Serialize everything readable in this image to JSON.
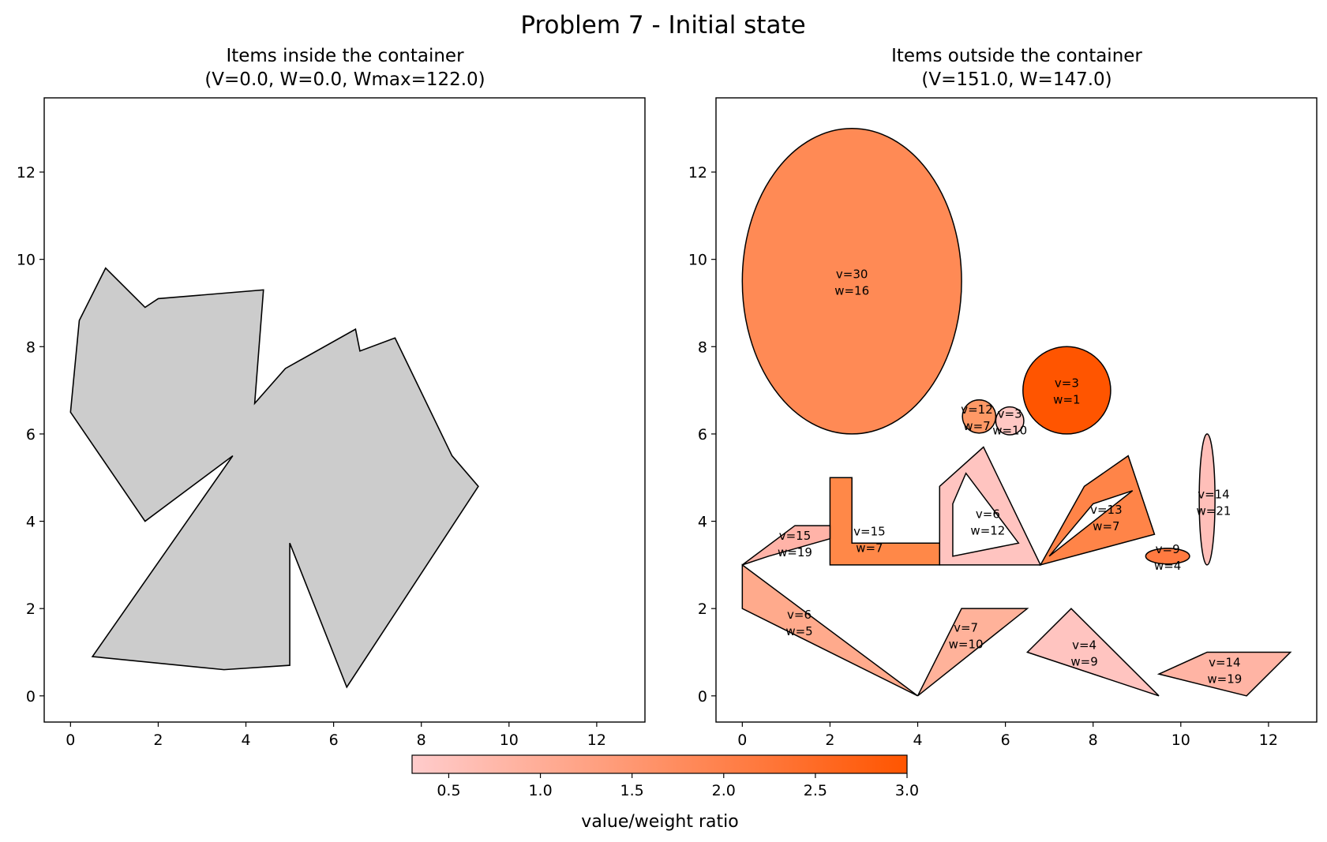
{
  "title": "Problem 7 - Initial state",
  "chart_data": [
    {
      "type": "polygon",
      "title_line1": "Items inside the container",
      "title_line2": "(V=0.0, W=0.0, Wmax=122.0)",
      "xlim": [
        -0.6,
        13.1
      ],
      "ylim": [
        -0.6,
        13.7
      ],
      "xticks": [
        0,
        2,
        4,
        6,
        8,
        10,
        12
      ],
      "yticks": [
        0,
        2,
        4,
        6,
        8,
        10,
        12
      ],
      "container": {
        "color": "#cccccc",
        "points": [
          [
            0.8,
            9.8
          ],
          [
            1.7,
            8.9
          ],
          [
            2.0,
            9.1
          ],
          [
            4.4,
            9.3
          ],
          [
            4.2,
            6.7
          ],
          [
            4.9,
            7.5
          ],
          [
            6.5,
            8.4
          ],
          [
            6.6,
            7.9
          ],
          [
            7.4,
            8.2
          ],
          [
            8.7,
            5.5
          ],
          [
            9.3,
            4.8
          ],
          [
            6.3,
            0.2
          ],
          [
            5.0,
            3.5
          ],
          [
            5.0,
            0.7
          ],
          [
            3.5,
            0.6
          ],
          [
            0.5,
            0.9
          ],
          [
            3.7,
            5.5
          ],
          [
            1.7,
            4.0
          ],
          [
            0.0,
            6.5
          ],
          [
            0.2,
            8.6
          ]
        ]
      }
    },
    {
      "type": "polygon",
      "title_line1": "Items outside the container",
      "title_line2": "(V=151.0, W=147.0)",
      "xlim": [
        -0.6,
        13.1
      ],
      "ylim": [
        -0.6,
        13.7
      ],
      "xticks": [
        0,
        2,
        4,
        6,
        8,
        10,
        12
      ],
      "yticks": [
        0,
        2,
        4,
        6,
        8,
        10,
        12
      ],
      "items": [
        {
          "shape": "ellipse",
          "cx": 2.5,
          "cy": 9.5,
          "rx": 2.5,
          "ry": 3.5,
          "v": "30",
          "w": "16",
          "color": "#ff8a55",
          "lx": 2.5,
          "ly": 9.5
        },
        {
          "shape": "ellipse",
          "cx": 7.4,
          "cy": 7.0,
          "rx": 1.0,
          "ry": 1.0,
          "v": "3",
          "w": "1",
          "color": "#ff5500",
          "lx": 7.4,
          "ly": 7.0
        },
        {
          "shape": "ellipse",
          "cx": 5.4,
          "cy": 6.4,
          "rx": 0.38,
          "ry": 0.38,
          "v": "12",
          "w": "7",
          "color": "#ff9966",
          "lx": 5.35,
          "ly": 6.4
        },
        {
          "shape": "ellipse",
          "cx": 6.1,
          "cy": 6.3,
          "rx": 0.32,
          "ry": 0.32,
          "v": "3",
          "w": "10",
          "color": "#ffc8c4",
          "lx": 6.1,
          "ly": 6.3
        },
        {
          "shape": "polygon",
          "points": [
            [
              2.0,
              3.0
            ],
            [
              4.5,
              3.0
            ],
            [
              4.5,
              3.5
            ],
            [
              2.5,
              3.5
            ],
            [
              2.5,
              5.0
            ],
            [
              2.0,
              5.0
            ]
          ],
          "v": "15",
          "w": "7",
          "color": "#ff8848",
          "lx": 2.9,
          "ly": 3.6
        },
        {
          "shape": "polygon",
          "points": [
            [
              0.0,
              3.0
            ],
            [
              1.2,
              3.9
            ],
            [
              2.0,
              3.9
            ],
            [
              2.0,
              3.6
            ],
            [
              0.6,
              3.2
            ]
          ],
          "v": "15",
          "w": "19",
          "color": "#ffb3a8",
          "lx": 1.2,
          "ly": 3.5
        },
        {
          "shape": "polygon",
          "points": [
            [
              4.5,
              4.8
            ],
            [
              5.5,
              5.7
            ],
            [
              6.8,
              3.0
            ],
            [
              4.5,
              3.0
            ]
          ],
          "hole": [
            [
              4.8,
              4.4
            ],
            [
              5.1,
              5.1
            ],
            [
              6.3,
              3.5
            ],
            [
              4.8,
              3.2
            ]
          ],
          "v": "6",
          "w": "12",
          "color": "#ffc4c0",
          "lx": 5.6,
          "ly": 4.0
        },
        {
          "shape": "polygon",
          "points": [
            [
              6.8,
              3.0
            ],
            [
              7.8,
              4.8
            ],
            [
              8.8,
              5.5
            ],
            [
              9.4,
              3.7
            ]
          ],
          "hole": [
            [
              7.0,
              3.2
            ],
            [
              8.0,
              4.4
            ],
            [
              8.9,
              4.7
            ]
          ],
          "v": "13",
          "w": "7",
          "color": "#ff8448",
          "lx": 8.3,
          "ly": 4.1
        },
        {
          "shape": "ellipse",
          "cx": 10.6,
          "cy": 4.5,
          "rx": 0.18,
          "ry": 1.5,
          "v": "14",
          "w": "21",
          "color": "#ffbfb9",
          "lx": 10.75,
          "ly": 4.45
        },
        {
          "shape": "ellipse",
          "cx": 9.7,
          "cy": 3.2,
          "rx": 0.5,
          "ry": 0.18,
          "v": "9",
          "w": "4",
          "color": "#ff7a40",
          "lx": 9.7,
          "ly": 3.2
        },
        {
          "shape": "polygon",
          "points": [
            [
              0.0,
              3.0
            ],
            [
              4.0,
              0.0
            ],
            [
              0.0,
              2.0
            ]
          ],
          "v": "6",
          "w": "5",
          "color": "#ffaa8c",
          "lx": 1.3,
          "ly": 1.7
        },
        {
          "shape": "polygon",
          "points": [
            [
              4.0,
              0.0
            ],
            [
              5.0,
              2.0
            ],
            [
              6.5,
              2.0
            ]
          ],
          "v": "7",
          "w": "10",
          "color": "#ffb29a",
          "lx": 5.1,
          "ly": 1.4
        },
        {
          "shape": "polygon",
          "points": [
            [
              6.5,
              1.0
            ],
            [
              7.5,
              2.0
            ],
            [
              9.5,
              0.0
            ]
          ],
          "v": "4",
          "w": "9",
          "color": "#ffc4c0",
          "lx": 7.8,
          "ly": 1.0
        },
        {
          "shape": "polygon",
          "points": [
            [
              9.5,
              0.5
            ],
            [
              10.6,
              1.0
            ],
            [
              12.5,
              1.0
            ],
            [
              11.5,
              0.0
            ]
          ],
          "v": "14",
          "w": "19",
          "color": "#ffb4a4",
          "lx": 11.0,
          "ly": 0.6
        }
      ]
    }
  ],
  "colorbar": {
    "label": "value/weight ratio",
    "vmin": 0.3,
    "vmax": 3.0,
    "ticks": [
      0.5,
      1.0,
      1.5,
      2.0,
      2.5,
      3.0
    ],
    "tick_labels": [
      "0.5",
      "1.0",
      "1.5",
      "2.0",
      "2.5",
      "3.0"
    ],
    "color_low": "#ffcccc",
    "color_high": "#ff5500"
  }
}
